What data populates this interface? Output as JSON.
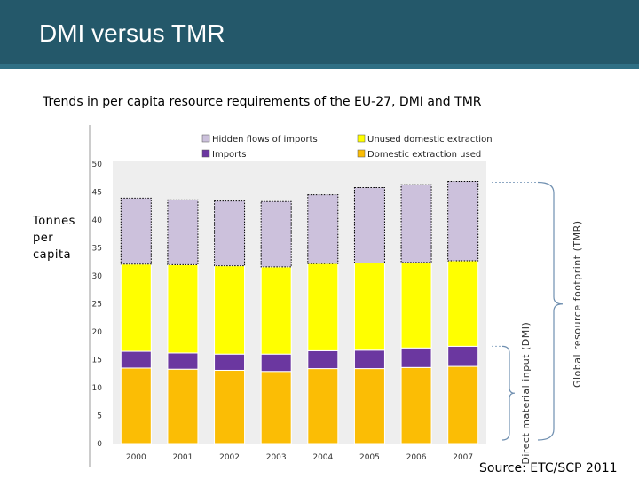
{
  "slide": {
    "title": "DMI versus TMR",
    "subtitle": "Trends in per capita resource requirements of the EU-27, DMI and TMR",
    "y_unit_lines": [
      "Tonnes",
      "per",
      "capita"
    ],
    "source": "Source: ETC/SCP 2011",
    "colors": {
      "title_bar": "#24586a",
      "accent": "#2f6f84"
    }
  },
  "chart_data": {
    "type": "bar",
    "stacked": true,
    "categories": [
      "2000",
      "2001",
      "2002",
      "2003",
      "2004",
      "2005",
      "2006",
      "2007"
    ],
    "series": [
      {
        "name": "Domestic extraction used",
        "color": "#fbbd05",
        "values": [
          13.5,
          13.3,
          13.1,
          12.9,
          13.4,
          13.4,
          13.6,
          13.8
        ]
      },
      {
        "name": "Imports",
        "color": "#6b37a0",
        "values": [
          3.0,
          2.9,
          2.9,
          3.1,
          3.2,
          3.3,
          3.5,
          3.6
        ]
      },
      {
        "name": "Unused domestic extraction",
        "color": "#ffff00",
        "values": [
          15.6,
          15.8,
          15.8,
          15.6,
          15.6,
          15.6,
          15.3,
          15.3
        ]
      },
      {
        "name": "Hidden flows of imports",
        "color": "#ccc1dc",
        "values": [
          11.8,
          11.6,
          11.6,
          11.7,
          12.3,
          13.5,
          13.9,
          14.2
        ]
      }
    ],
    "ylim": [
      0,
      50
    ],
    "yticks": [
      0,
      5,
      10,
      15,
      20,
      25,
      30,
      35,
      40,
      45,
      50
    ],
    "legend": [
      {
        "name": "Hidden flows of imports",
        "color": "#ccc1dc",
        "position": "top-left"
      },
      {
        "name": "Unused domestic extraction",
        "color": "#ffff00",
        "position": "top-right"
      },
      {
        "name": "Imports",
        "color": "#6b37a0",
        "position": "bottom-left"
      },
      {
        "name": "Domestic extraction used",
        "color": "#fbbd05",
        "position": "bottom-right"
      }
    ],
    "brackets": {
      "dmi_label": "Direct material input (DMI)",
      "tmr_label": "Global resource footprint (TMR)"
    },
    "grid": false
  }
}
